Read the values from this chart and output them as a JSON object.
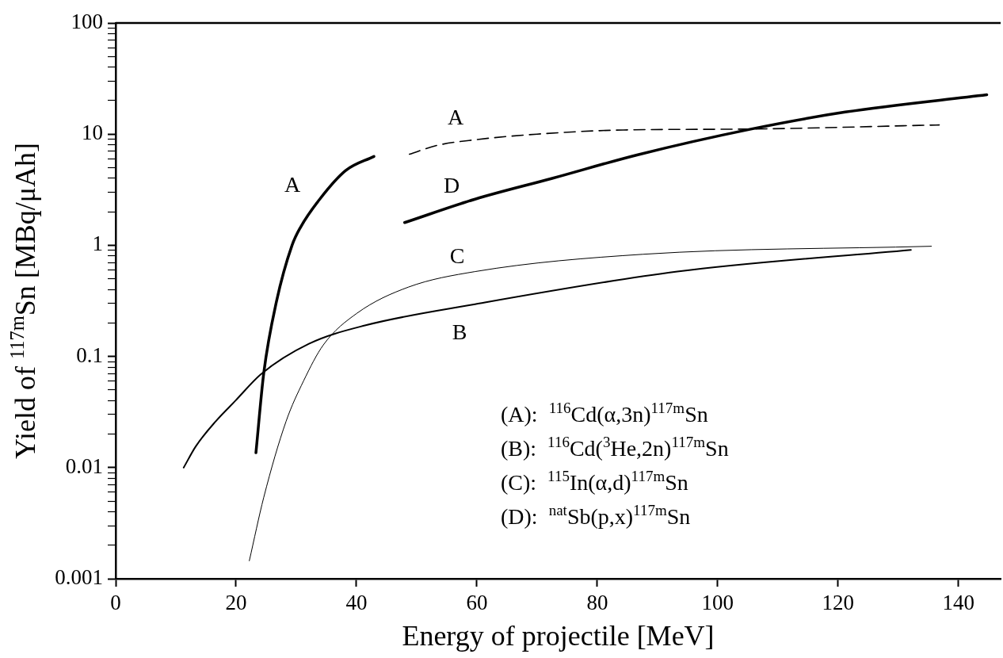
{
  "chart_data": {
    "type": "line",
    "xlabel": "Energy of projectile [MeV]",
    "ylabel": "Yield of $^{117m}$Sn [MBq/μAh]",
    "log": "y",
    "grid": false,
    "legend": false,
    "marker": "none",
    "xlim": [
      0,
      147
    ],
    "xticks": [
      0,
      20,
      40,
      60,
      80,
      100,
      120,
      140
    ],
    "ylim": [
      0.001,
      100
    ],
    "yticks": [
      0.001,
      {
        "value": 0.002,
        "label": null
      },
      {
        "value": 0.003,
        "label": null
      },
      {
        "value": 0.004,
        "label": null
      },
      {
        "value": 0.005,
        "label": null
      },
      {
        "value": 0.006,
        "label": null
      },
      {
        "value": 0.007,
        "label": null
      },
      {
        "value": 0.008,
        "label": null
      },
      {
        "value": 0.009,
        "label": null
      },
      0.01,
      {
        "value": 0.02,
        "label": null
      },
      {
        "value": 0.03,
        "label": null
      },
      {
        "value": 0.04,
        "label": null
      },
      {
        "value": 0.05,
        "label": null
      },
      {
        "value": 0.06,
        "label": null
      },
      {
        "value": 0.07,
        "label": null
      },
      {
        "value": 0.08,
        "label": null
      },
      {
        "value": 0.09,
        "label": null
      },
      0.1,
      {
        "value": 0.2,
        "label": null
      },
      {
        "value": 0.3,
        "label": null
      },
      {
        "value": 0.4,
        "label": null
      },
      {
        "value": 0.5,
        "label": null
      },
      {
        "value": 0.6,
        "label": null
      },
      {
        "value": 0.7,
        "label": null
      },
      {
        "value": 0.8,
        "label": null
      },
      {
        "value": 0.9,
        "label": null
      },
      1,
      {
        "value": 2,
        "label": null
      },
      {
        "value": 3,
        "label": null
      },
      {
        "value": 4,
        "label": null
      },
      {
        "value": 5,
        "label": null
      },
      {
        "value": 6,
        "label": null
      },
      {
        "value": 7,
        "label": null
      },
      {
        "value": 8,
        "label": null
      },
      {
        "value": 9,
        "label": null
      },
      10,
      {
        "value": 20,
        "label": null
      },
      {
        "value": 30,
        "label": null
      },
      {
        "value": 40,
        "label": null
      },
      {
        "value": 50,
        "label": null
      },
      {
        "value": 60,
        "label": null
      },
      {
        "value": 70,
        "label": null
      },
      {
        "value": 80,
        "label": null
      },
      {
        "value": 90,
        "label": null
      },
      100
    ],
    "series": [
      {
        "color": "#000000",
        "line_style": "solid",
        "x": [
          23.3,
          24.6,
          26.7,
          29.3,
          30.7,
          33.9,
          38.2,
          42.9
        ],
        "values": [
          0.0136,
          0.071,
          0.31,
          1.0,
          1.45,
          2.6,
          4.7,
          6.3
        ]
      },
      {
        "color": "#000000",
        "line_style": "dashed",
        "x": [
          48.8,
          53.3,
          59.7,
          70,
          84.3,
          104.5,
          136.8
        ],
        "values": [
          6.6,
          7.9,
          8.9,
          10,
          10.9,
          11.1,
          12.1
        ]
      },
      {
        "color": "#000000",
        "line_style": "solid",
        "x": [
          11.3,
          13.3,
          16.6,
          19.9,
          24.1,
          32.1,
          41.4,
          59.7,
          93.3,
          132.1
        ],
        "values": [
          0.01,
          0.0155,
          0.026,
          0.04,
          0.069,
          0.13,
          0.19,
          0.295,
          0.58,
          0.91
        ]
      },
      {
        "color": "#000000",
        "line_style": "solid",
        "x": [
          22.2,
          24.6,
          28.3,
          31.2,
          34.5,
          40.1,
          48.6,
          59.7,
          87.6,
          135.5
        ],
        "values": [
          0.00145,
          0.0054,
          0.026,
          0.06,
          0.127,
          0.245,
          0.42,
          0.58,
          0.83,
          0.98
        ]
      },
      {
        "color": "#000000",
        "line_style": "solid",
        "x": [
          48,
          59.7,
          72.5,
          86.6,
          105.5,
          121.2,
          144.7
        ],
        "values": [
          1.6,
          2.6,
          4.0,
          6.5,
          11.1,
          15.8,
          22.6
        ]
      }
    ],
    "annotations": [
      "A",
      "A",
      "D",
      "C",
      "B",
      "(A):  $^{116}$Cd(α,3n)$^{117m}$Sn",
      "(B):  $^{116}$Cd($^{3}$He,2n)$^{117m}$Sn",
      "(C):  $^{115}$In(α,d)$^{117m}$Sn",
      "(D):  $^{nat}$Sb(p,x)$^{117m}$Sn"
    ]
  }
}
